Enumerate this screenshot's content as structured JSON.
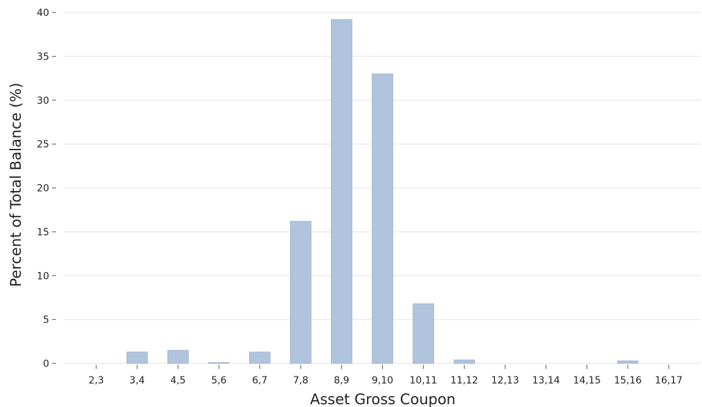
{
  "chart_data": {
    "type": "bar",
    "xlabel": "Asset Gross Coupon",
    "ylabel": "Percent of Total Balance (%)",
    "categories": [
      "2,3",
      "3,4",
      "4,5",
      "5,6",
      "6,7",
      "7,8",
      "8,9",
      "9,10",
      "10,11",
      "11,12",
      "12,13",
      "13,14",
      "14,15",
      "15,16",
      "16,17"
    ],
    "values": [
      0,
      1.3,
      1.5,
      0.1,
      1.3,
      16.2,
      39.2,
      33.0,
      6.8,
      0.4,
      0,
      0,
      0,
      0.3,
      0
    ],
    "ylim": [
      0,
      40
    ],
    "yticks": [
      0,
      5,
      10,
      15,
      20,
      25,
      30,
      35,
      40
    ],
    "grid": "horizontal",
    "colors": {
      "bar_fill": "#b0c4de",
      "bar_edge": "#8fa3bd",
      "grid": "#ebebeb"
    }
  }
}
